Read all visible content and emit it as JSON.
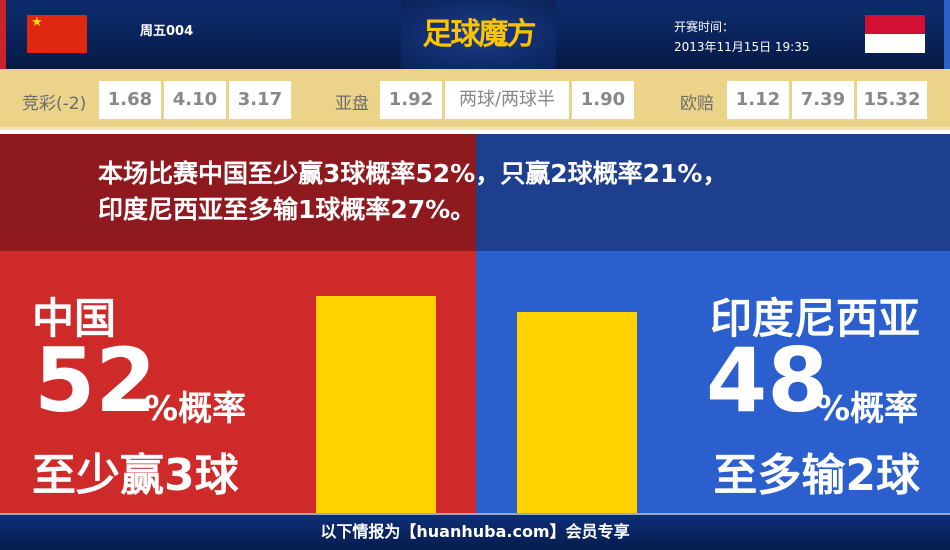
{
  "header": {
    "match_no": "周五004",
    "logo_text": "足球魔方",
    "time_label": "开赛时间：",
    "time_value": "2013年11月15日 19:35",
    "home_flag": "china-flag",
    "away_flag": "indonesia-flag"
  },
  "odds": {
    "jingcai_label": "竞彩(-2)",
    "jingcai": [
      "1.68",
      "4.10",
      "3.17"
    ],
    "yapan_label": "亚盘",
    "yapan": [
      "1.92",
      "两球/两球半",
      "1.90"
    ],
    "oupei_label": "欧赔",
    "oupei": [
      "1.12",
      "7.39",
      "15.32"
    ]
  },
  "summary": {
    "line1": "本场比赛中国至少赢3球概率52%，只赢2球概率21%，",
    "line2": "印度尼西亚至多输1球概率27%。"
  },
  "home": {
    "name": "中国",
    "percent": "52",
    "unit": "%概率",
    "desc": "至少赢3球",
    "value": 52,
    "color": "#cf2a2a"
  },
  "away": {
    "name": "印度尼西亚",
    "percent": "48",
    "unit": "%概率",
    "desc": "至多输2球",
    "value": 48,
    "color": "#2b5fcd"
  },
  "footer": {
    "text": "以下情报为【huanhuba.com】会员专享"
  }
}
